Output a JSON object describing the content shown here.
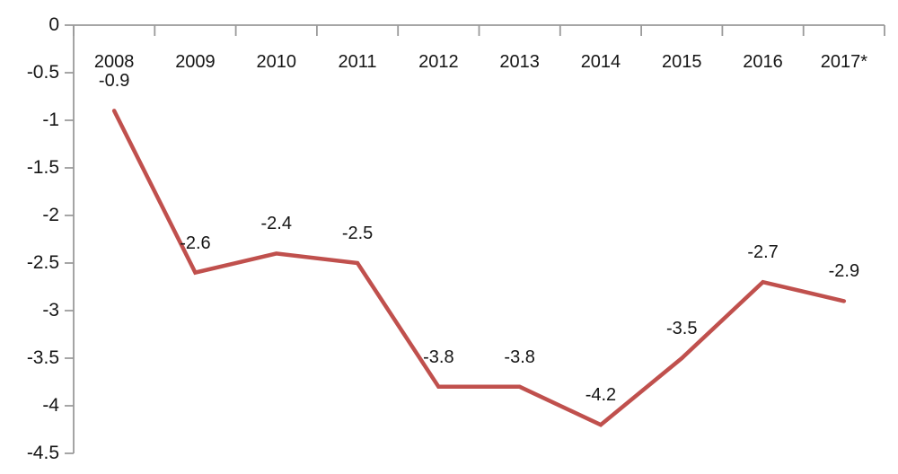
{
  "chart_data": {
    "type": "line",
    "title": "",
    "xlabel": "",
    "ylabel": "",
    "categories": [
      "2008",
      "2009",
      "2010",
      "2011",
      "2012",
      "2013",
      "2014",
      "2015",
      "2016",
      "2017*"
    ],
    "values": [
      -0.9,
      -2.6,
      -2.4,
      -2.5,
      -3.8,
      -3.8,
      -4.2,
      -3.5,
      -2.7,
      -2.9
    ],
    "data_labels": [
      "-0.9",
      "-2.6",
      "-2.4",
      "-2.5",
      "-3.8",
      "-3.8",
      "-4.2",
      "-3.5",
      "-2.7",
      "-2.9"
    ],
    "y_tick_labels": [
      "0",
      "-0.5",
      "-1",
      "-1.5",
      "-2",
      "-2.5",
      "-3",
      "-3.5",
      "-4",
      "-4.5"
    ],
    "y_tick_values": [
      0,
      -0.5,
      -1,
      -1.5,
      -2,
      -2.5,
      -3,
      -3.5,
      -4,
      -4.5
    ],
    "ylim": [
      -4.5,
      0
    ],
    "grid": false,
    "legend": "none",
    "line_color": "#c0504d",
    "axis_color": "#9a9a9a",
    "text_color": "#151515"
  }
}
